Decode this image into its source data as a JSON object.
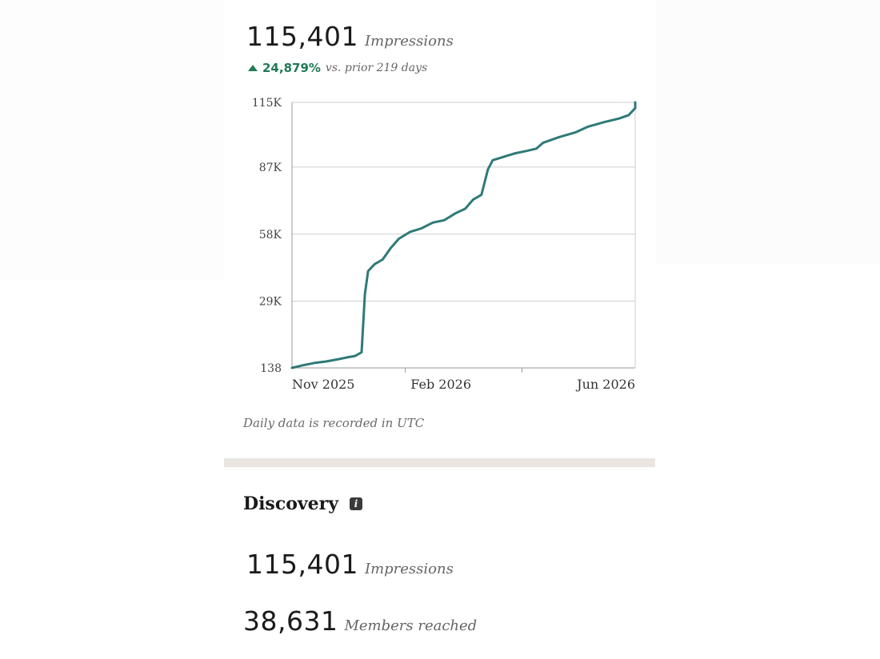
{
  "summary": {
    "impressions_value": "115,401",
    "impressions_label": "Impressions",
    "delta_percent": "24,879%",
    "delta_text": "vs. prior 219 days",
    "delta_color": "#1f7a55"
  },
  "chart_note": "Daily data is recorded in UTC",
  "discovery": {
    "title": "Discovery",
    "info_icon": "info-icon",
    "impressions_value": "115,401",
    "impressions_label": "Impressions",
    "members_value": "38,631",
    "members_label": "Members reached"
  },
  "chart_data": {
    "type": "line",
    "line_color": "#2f7a78",
    "grid": true,
    "ylim": [
      138,
      115000
    ],
    "y_ticks": [
      {
        "value": 138,
        "label": "138"
      },
      {
        "value": 29000,
        "label": "29K"
      },
      {
        "value": 58000,
        "label": "58K"
      },
      {
        "value": 87000,
        "label": "87K"
      },
      {
        "value": 115000,
        "label": "115K"
      }
    ],
    "x_ticks": [
      {
        "date": "2025-11-01",
        "label": "Nov 2025"
      },
      {
        "date": "2026-02-01",
        "label": "Feb 2026"
      },
      {
        "date": "2026-06-01",
        "label": "Jun 2026"
      }
    ],
    "xlim": [
      "2025-11-01",
      "2026-06-01"
    ],
    "series": [
      {
        "points": [
          [
            "2025-11-01",
            138
          ],
          [
            "2025-11-08",
            1300
          ],
          [
            "2025-11-15",
            2300
          ],
          [
            "2025-11-22",
            2900
          ],
          [
            "2025-11-29",
            3800
          ],
          [
            "2025-12-06",
            4800
          ],
          [
            "2025-12-10",
            5300
          ],
          [
            "2025-12-14",
            6900
          ],
          [
            "2025-12-16",
            32000
          ],
          [
            "2025-12-18",
            42000
          ],
          [
            "2025-12-22",
            45000
          ],
          [
            "2025-12-27",
            47000
          ],
          [
            "2026-01-01",
            52000
          ],
          [
            "2026-01-06",
            56000
          ],
          [
            "2026-01-13",
            59000
          ],
          [
            "2026-01-20",
            60500
          ],
          [
            "2026-01-27",
            63000
          ],
          [
            "2026-02-03",
            64000
          ],
          [
            "2026-02-10",
            67000
          ],
          [
            "2026-02-16",
            69000
          ],
          [
            "2026-02-21",
            73000
          ],
          [
            "2026-02-26",
            75000
          ],
          [
            "2026-03-02",
            86000
          ],
          [
            "2026-03-05",
            90000
          ],
          [
            "2026-03-12",
            91500
          ],
          [
            "2026-03-19",
            93000
          ],
          [
            "2026-03-26",
            94000
          ],
          [
            "2026-04-01",
            95000
          ],
          [
            "2026-04-05",
            97500
          ],
          [
            "2026-04-15",
            100000
          ],
          [
            "2026-04-25",
            102000
          ],
          [
            "2026-05-03",
            104500
          ],
          [
            "2026-05-13",
            106500
          ],
          [
            "2026-05-22",
            108000
          ],
          [
            "2026-05-28",
            109500
          ],
          [
            "2026-06-01",
            112500
          ],
          [
            "2026-06-01",
            115000
          ]
        ]
      }
    ]
  }
}
